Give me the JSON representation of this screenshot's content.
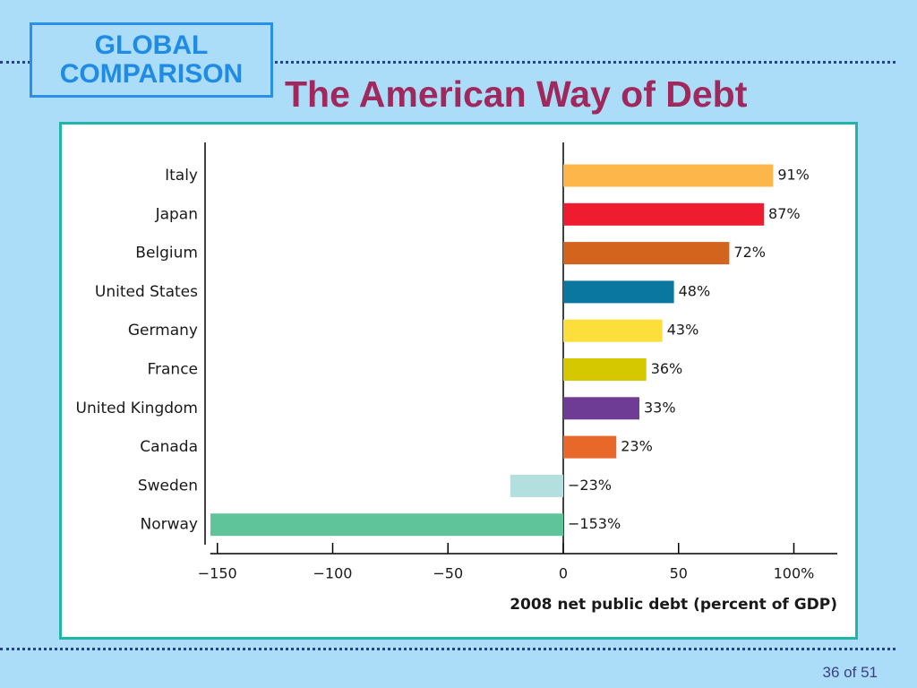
{
  "badge": {
    "line1": "GLOBAL",
    "line2": "COMPARISON"
  },
  "title": "The American Way of Debt",
  "footer": {
    "page": "36 of 51"
  },
  "colors": {
    "background": "#abdcf8",
    "title": "#a0285c",
    "badge": "#1f8be4",
    "panel_border": "#1fb6a8"
  },
  "chart_data": {
    "type": "bar",
    "orientation": "horizontal",
    "title": "",
    "xlabel": "2008 net public debt (percent of GDP)",
    "ylabel": "",
    "xlim": [
      -155,
      115
    ],
    "xticks": [
      -150,
      -100,
      -50,
      0,
      50,
      100
    ],
    "xtick_labels": [
      "−150",
      "−100",
      "−50",
      "0",
      "50",
      "100%"
    ],
    "grid": false,
    "categories": [
      "Italy",
      "Japan",
      "Belgium",
      "United States",
      "Germany",
      "France",
      "United Kingdom",
      "Canada",
      "Sweden",
      "Norway"
    ],
    "values": [
      91,
      87,
      72,
      48,
      43,
      36,
      33,
      23,
      -23,
      -153
    ],
    "value_labels": [
      "91%",
      "87%",
      "72%",
      "48%",
      "43%",
      "36%",
      "33%",
      "23%",
      "−23%",
      "−153%"
    ],
    "colors": [
      "#fcb64a",
      "#ee1c2e",
      "#d2641e",
      "#0a77a0",
      "#fddf3b",
      "#d6c800",
      "#6e3c95",
      "#e8682a",
      "#b4dfdf",
      "#60c49a"
    ]
  }
}
